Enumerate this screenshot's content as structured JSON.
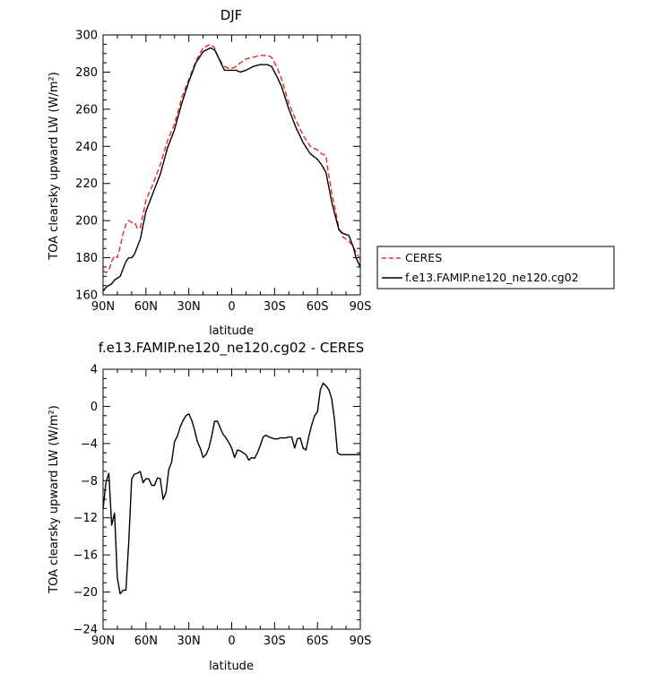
{
  "chart_data": [
    {
      "type": "line",
      "title": "DJF",
      "xlabel": "latitude",
      "ylabel": "TOA clearsky upward LW (W/m²)",
      "xlim": [
        90,
        -90
      ],
      "ylim": [
        160,
        300
      ],
      "x_ticks": [
        90,
        60,
        30,
        0,
        -30,
        -60,
        -90
      ],
      "x_tick_labels": [
        "90N",
        "60N",
        "30N",
        "0",
        "30S",
        "60S",
        "90S"
      ],
      "y_ticks": [
        160,
        180,
        200,
        220,
        240,
        260,
        280,
        300
      ],
      "y_tick_labels": [
        "160",
        "180",
        "200",
        "220",
        "240",
        "260",
        "280",
        "300"
      ],
      "grid": false,
      "legend_position": "outside-right",
      "series": [
        {
          "name": "CERES",
          "color": "#e8262a",
          "dash": "dashed",
          "x": [
            90,
            88,
            86,
            84,
            82,
            80,
            78,
            76,
            74,
            72,
            70,
            68,
            66,
            64,
            60,
            56,
            50,
            45,
            40,
            35,
            30,
            25,
            20,
            15,
            12,
            10,
            7,
            5,
            2,
            0,
            -3,
            -6,
            -10,
            -15,
            -20,
            -25,
            -28,
            -32,
            -35,
            -40,
            -45,
            -50,
            -55,
            -60,
            -63,
            -66,
            -67,
            -70,
            -73,
            -75,
            -78,
            -82,
            -85,
            -87,
            -90
          ],
          "values": [
            173,
            172,
            173,
            178,
            181,
            180,
            186,
            193,
            198,
            200,
            199,
            199,
            196,
            196,
            211,
            218,
            230,
            243,
            252,
            266,
            276,
            286,
            293,
            295,
            293,
            289,
            285,
            283,
            282,
            282,
            283,
            285,
            287,
            288,
            289,
            289,
            288,
            282,
            276,
            263,
            254,
            246,
            240,
            238,
            236,
            235,
            229,
            215,
            204,
            196,
            191,
            189,
            186,
            183,
            179
          ]
        },
        {
          "name": "f.e13.FAMIP.ne120_ne120.cg02",
          "color": "#000000",
          "dash": "solid",
          "x": [
            90,
            88,
            86,
            84,
            82,
            80,
            78,
            76,
            74,
            72,
            70,
            68,
            66,
            64,
            60,
            56,
            50,
            45,
            40,
            35,
            30,
            25,
            20,
            15,
            12,
            10,
            7,
            5,
            2,
            0,
            -3,
            -6,
            -10,
            -15,
            -20,
            -25,
            -28,
            -32,
            -35,
            -40,
            -45,
            -50,
            -55,
            -60,
            -63,
            -66,
            -67,
            -70,
            -73,
            -75,
            -78,
            -82,
            -85,
            -87,
            -90
          ],
          "values": [
            162,
            164,
            165,
            166,
            168,
            169,
            170,
            174,
            178,
            180,
            180,
            182,
            186,
            190,
            205,
            213,
            225,
            239,
            249,
            263,
            275,
            285,
            291,
            293,
            292,
            289,
            284,
            281,
            281,
            281,
            281,
            280,
            281,
            283,
            284,
            284,
            283,
            277,
            272,
            260,
            250,
            242,
            236,
            233,
            230,
            226,
            222,
            210,
            201,
            195,
            193,
            192,
            186,
            180,
            175
          ]
        }
      ]
    },
    {
      "type": "line",
      "title": "f.e13.FAMIP.ne120_ne120.cg02 - CERES",
      "xlabel": "latitude",
      "ylabel": "TOA clearsky upward LW (W/m²)",
      "xlim": [
        90,
        -90
      ],
      "ylim": [
        -24,
        4
      ],
      "x_ticks": [
        90,
        60,
        30,
        0,
        -30,
        -60,
        -90
      ],
      "x_tick_labels": [
        "90N",
        "60N",
        "30N",
        "0",
        "30S",
        "60S",
        "90S"
      ],
      "y_ticks": [
        -24,
        -20,
        -16,
        -12,
        -8,
        -4,
        0,
        4
      ],
      "y_tick_labels": [
        "−24",
        "−20",
        "−16",
        "−12",
        "−8",
        "−4",
        "0",
        "4"
      ],
      "grid": false,
      "series": [
        {
          "color": "#000000",
          "dash": "solid",
          "x": [
            90,
            88,
            86,
            84,
            82,
            80,
            78,
            76,
            74,
            72,
            70,
            68,
            66,
            64,
            62,
            60,
            58,
            56,
            54,
            52,
            50,
            48,
            46,
            44,
            42,
            40,
            38,
            36,
            34,
            32,
            30,
            28,
            26,
            24,
            22,
            20,
            18,
            16,
            14,
            12,
            10,
            8,
            6,
            4,
            2,
            0,
            -2,
            -4,
            -6,
            -8,
            -10,
            -12,
            -14,
            -16,
            -18,
            -20,
            -22,
            -24,
            -26,
            -28,
            -30,
            -32,
            -34,
            -36,
            -38,
            -40,
            -42,
            -44,
            -46,
            -48,
            -50,
            -52,
            -54,
            -56,
            -58,
            -60,
            -62,
            -64,
            -66,
            -68,
            -70,
            -72,
            -74,
            -76,
            -78,
            -80,
            -82,
            -84,
            -86,
            -88,
            -90
          ],
          "values": [
            -11.0,
            -8.2,
            -7.2,
            -12.8,
            -11.5,
            -18.5,
            -20.2,
            -19.8,
            -19.8,
            -14.5,
            -7.8,
            -7.3,
            -7.2,
            -7.0,
            -8.2,
            -7.8,
            -7.8,
            -8.5,
            -8.5,
            -7.7,
            -7.8,
            -10.0,
            -9.3,
            -6.8,
            -6.0,
            -3.8,
            -3.2,
            -2.2,
            -1.5,
            -1.0,
            -0.8,
            -1.5,
            -2.5,
            -3.8,
            -4.5,
            -5.5,
            -5.2,
            -4.5,
            -3.2,
            -1.6,
            -1.6,
            -2.3,
            -3.0,
            -3.4,
            -3.9,
            -4.5,
            -5.5,
            -4.7,
            -4.8,
            -5.0,
            -5.2,
            -5.8,
            -5.5,
            -5.6,
            -5.0,
            -4.2,
            -3.3,
            -3.1,
            -3.3,
            -3.4,
            -3.5,
            -3.5,
            -3.4,
            -3.4,
            -3.4,
            -3.3,
            -3.3,
            -4.5,
            -3.5,
            -3.4,
            -4.5,
            -4.7,
            -3.2,
            -2.0,
            -1.0,
            -0.6,
            1.8,
            2.5,
            2.2,
            1.8,
            0.8,
            -1.5,
            -5.0,
            -5.2,
            -5.2,
            -5.2,
            -5.2,
            -5.2,
            -5.2,
            -5.2,
            -5.2
          ]
        }
      ]
    }
  ]
}
